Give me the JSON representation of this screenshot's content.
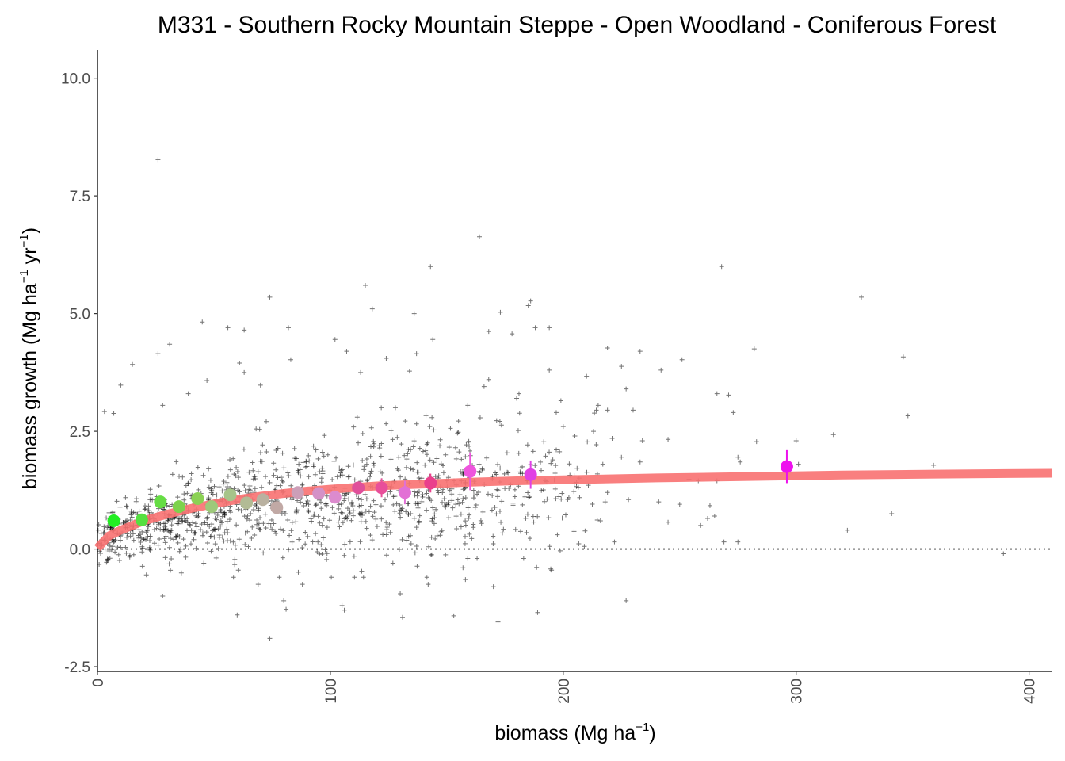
{
  "chart_data": {
    "type": "scatter",
    "title": "M331 - Southern Rocky Mountain Steppe - Open Woodland - Coniferous Forest",
    "xlabel": {
      "main": "biomass (Mg ha",
      "sup": "−1",
      "end": ")"
    },
    "ylabel": {
      "a": "biomass growth (Mg ha",
      "sup1": "−1",
      "b": " yr",
      "sup2": "−1",
      "c": ")"
    },
    "xlim": [
      0,
      410
    ],
    "ylim": [
      -2.6,
      10.6
    ],
    "x_ticks": [
      0,
      100,
      200,
      300,
      400
    ],
    "x_tick_labels": [
      "0",
      "100",
      "200",
      "300",
      "400"
    ],
    "y_ticks": [
      -2.5,
      0,
      2.5,
      5,
      7.5,
      10
    ],
    "y_tick_labels": [
      "-2.5",
      "0.0",
      "2.5",
      "5.0",
      "7.5",
      "10.0"
    ],
    "reference_line": {
      "y": 0,
      "style": "dotted"
    },
    "raw_points_style": {
      "marker": "+",
      "color": "#000000"
    },
    "raw_points_outliers": [
      {
        "x": 26,
        "y": 8.27
      },
      {
        "x": 164,
        "y": 6.63
      },
      {
        "x": 268,
        "y": 6.0
      },
      {
        "x": 143,
        "y": 6.0
      },
      {
        "x": 115,
        "y": 5.6
      },
      {
        "x": 74,
        "y": 5.35
      },
      {
        "x": 328,
        "y": 5.35
      },
      {
        "x": 118,
        "y": 5.1
      },
      {
        "x": 186,
        "y": 5.27
      },
      {
        "x": 185,
        "y": 5.17
      },
      {
        "x": 173,
        "y": 5.03
      },
      {
        "x": 136,
        "y": 5.0
      },
      {
        "x": 45,
        "y": 4.82
      },
      {
        "x": 56,
        "y": 4.7
      },
      {
        "x": 63,
        "y": 4.65
      },
      {
        "x": 82,
        "y": 4.7
      },
      {
        "x": 168,
        "y": 4.62
      },
      {
        "x": 178,
        "y": 4.57
      },
      {
        "x": 188,
        "y": 4.7
      },
      {
        "x": 194,
        "y": 4.7
      },
      {
        "x": 102,
        "y": 4.45
      },
      {
        "x": 31,
        "y": 4.35
      },
      {
        "x": 26,
        "y": 4.15
      },
      {
        "x": 15,
        "y": 3.92
      },
      {
        "x": 107,
        "y": 4.2
      },
      {
        "x": 144,
        "y": 4.45
      },
      {
        "x": 83,
        "y": 4.02
      },
      {
        "x": 61,
        "y": 3.95
      },
      {
        "x": 124,
        "y": 4.05
      },
      {
        "x": 137,
        "y": 4.15
      },
      {
        "x": 219,
        "y": 4.27
      },
      {
        "x": 233,
        "y": 4.2
      },
      {
        "x": 282,
        "y": 4.25
      },
      {
        "x": 346,
        "y": 4.08
      },
      {
        "x": 251,
        "y": 4.02
      },
      {
        "x": 242,
        "y": 3.8
      },
      {
        "x": 225,
        "y": 3.88
      },
      {
        "x": 10,
        "y": 3.48
      },
      {
        "x": 47,
        "y": 3.58
      },
      {
        "x": 63,
        "y": 3.75
      },
      {
        "x": 70,
        "y": 3.48
      },
      {
        "x": 113,
        "y": 3.75
      },
      {
        "x": 134,
        "y": 3.78
      },
      {
        "x": 194,
        "y": 3.8
      },
      {
        "x": 210,
        "y": 3.67
      },
      {
        "x": 227,
        "y": 3.4
      },
      {
        "x": 266,
        "y": 3.3
      },
      {
        "x": 271,
        "y": 3.27
      },
      {
        "x": 273,
        "y": 2.9
      },
      {
        "x": 348,
        "y": 2.83
      },
      {
        "x": 316,
        "y": 2.43
      },
      {
        "x": 245,
        "y": 2.33
      },
      {
        "x": 283,
        "y": 2.28
      },
      {
        "x": 300,
        "y": 2.3
      },
      {
        "x": 359,
        "y": 1.78
      },
      {
        "x": 275,
        "y": 1.95
      },
      {
        "x": 276,
        "y": 1.85
      },
      {
        "x": 301,
        "y": 1.8
      },
      {
        "x": 254,
        "y": 1.48
      },
      {
        "x": 258,
        "y": 1.45
      },
      {
        "x": 266,
        "y": 1.45
      },
      {
        "x": 241,
        "y": 1.0
      },
      {
        "x": 250,
        "y": 0.95
      },
      {
        "x": 263,
        "y": 0.92
      },
      {
        "x": 265,
        "y": 0.7
      },
      {
        "x": 245,
        "y": 0.57
      },
      {
        "x": 259,
        "y": 0.5
      },
      {
        "x": 262,
        "y": 0.65
      },
      {
        "x": 341,
        "y": 0.75
      },
      {
        "x": 322,
        "y": 0.4
      },
      {
        "x": 269,
        "y": 0.15
      },
      {
        "x": 275,
        "y": 0.15
      },
      {
        "x": 389,
        "y": -0.1
      },
      {
        "x": 227,
        "y": -1.1
      },
      {
        "x": 189,
        "y": -1.35
      },
      {
        "x": 172,
        "y": -1.55
      },
      {
        "x": 170,
        "y": -0.8
      },
      {
        "x": 158,
        "y": -0.65
      },
      {
        "x": 74,
        "y": -1.9
      },
      {
        "x": 60,
        "y": -1.4
      },
      {
        "x": 81,
        "y": -1.28
      },
      {
        "x": 80,
        "y": -1.1
      },
      {
        "x": 88,
        "y": -0.75
      },
      {
        "x": 105,
        "y": -1.2
      },
      {
        "x": 106,
        "y": -1.3
      },
      {
        "x": 130,
        "y": -0.95
      },
      {
        "x": 131,
        "y": -1.45
      },
      {
        "x": 153,
        "y": -1.42
      },
      {
        "x": 28,
        "y": -1.0
      },
      {
        "x": 21,
        "y": -0.55
      },
      {
        "x": 69,
        "y": -0.75
      },
      {
        "x": 142,
        "y": -0.75
      },
      {
        "x": 3,
        "y": 2.92
      },
      {
        "x": 7,
        "y": 2.88
      },
      {
        "x": 41,
        "y": 3.1
      },
      {
        "x": 39,
        "y": 3.3
      },
      {
        "x": 28,
        "y": 3.05
      },
      {
        "x": 159,
        "y": 3.05
      },
      {
        "x": 166,
        "y": 3.45
      },
      {
        "x": 168,
        "y": 3.6
      },
      {
        "x": 181,
        "y": 3.3
      },
      {
        "x": 199,
        "y": 3.15
      },
      {
        "x": 215,
        "y": 3.05
      },
      {
        "x": 219,
        "y": 2.95
      },
      {
        "x": 230,
        "y": 2.95
      },
      {
        "x": 180,
        "y": 3.2
      },
      {
        "x": 197,
        "y": 2.9
      },
      {
        "x": 213,
        "y": 2.5
      },
      {
        "x": 221,
        "y": 2.35
      },
      {
        "x": 234,
        "y": 2.3
      },
      {
        "x": 200,
        "y": 2.6
      },
      {
        "x": 205,
        "y": 2.4
      },
      {
        "x": 217,
        "y": 1.8
      },
      {
        "x": 225,
        "y": 1.95
      },
      {
        "x": 233,
        "y": 1.85
      },
      {
        "x": 219,
        "y": 1.2
      },
      {
        "x": 218,
        "y": 1.0
      },
      {
        "x": 228,
        "y": 1.05
      },
      {
        "x": 216,
        "y": 0.6
      },
      {
        "x": 222,
        "y": 0.15
      },
      {
        "x": 195,
        "y": -0.45
      },
      {
        "x": 183,
        "y": -0.2
      },
      {
        "x": 159,
        "y": -0.2
      },
      {
        "x": 163,
        "y": -0.2
      }
    ],
    "raw_points_cloud": {
      "count": 1150,
      "x_range": [
        0,
        215
      ],
      "y_range": [
        -0.6,
        3.0
      ]
    },
    "fitted_curve": {
      "color": "#f87171",
      "x": [
        0,
        5,
        10,
        20,
        30,
        40,
        50,
        60,
        70,
        80,
        90,
        100,
        120,
        140,
        160,
        180,
        200,
        240,
        280,
        320,
        360,
        410
      ],
      "y": [
        0.02,
        0.28,
        0.4,
        0.6,
        0.74,
        0.86,
        0.96,
        1.05,
        1.12,
        1.18,
        1.23,
        1.27,
        1.34,
        1.38,
        1.42,
        1.45,
        1.47,
        1.51,
        1.54,
        1.57,
        1.59,
        1.61
      ]
    },
    "binned_means": [
      {
        "x": 7,
        "y": 0.6,
        "color": "#22ee22"
      },
      {
        "x": 19,
        "y": 0.62,
        "color": "#55e040"
      },
      {
        "x": 27,
        "y": 1.0,
        "color": "#66dd44"
      },
      {
        "x": 35,
        "y": 0.9,
        "color": "#7dd24c"
      },
      {
        "x": 43,
        "y": 1.07,
        "color": "#8bd154"
      },
      {
        "x": 49,
        "y": 0.9,
        "color": "#9ec97a"
      },
      {
        "x": 57,
        "y": 1.15,
        "color": "#a6c48a"
      },
      {
        "x": 64,
        "y": 0.98,
        "color": "#b2bb95"
      },
      {
        "x": 71,
        "y": 1.05,
        "color": "#b9b1a0"
      },
      {
        "x": 77,
        "y": 0.88,
        "color": "#c1a9a5"
      },
      {
        "x": 86,
        "y": 1.2,
        "color": "#cc9fb8"
      },
      {
        "x": 95,
        "y": 1.18,
        "color": "#d491c7"
      },
      {
        "x": 102,
        "y": 1.1,
        "color": "#dc8bce"
      },
      {
        "x": 112,
        "y": 1.3,
        "color": "#e0509a"
      },
      {
        "x": 122,
        "y": 1.3,
        "color": "#e84f9a",
        "err": 0.2
      },
      {
        "x": 132,
        "y": 1.2,
        "color": "#e270d5",
        "err": 0.25
      },
      {
        "x": 143,
        "y": 1.4,
        "color": "#ea3f8c",
        "err": 0.2
      },
      {
        "x": 160,
        "y": 1.65,
        "color": "#ee55dd",
        "err": 0.4
      },
      {
        "x": 186,
        "y": 1.58,
        "color": "#e040e4",
        "err": 0.3
      },
      {
        "x": 296,
        "y": 1.75,
        "color": "#ee11ee",
        "err": 0.35
      }
    ]
  }
}
